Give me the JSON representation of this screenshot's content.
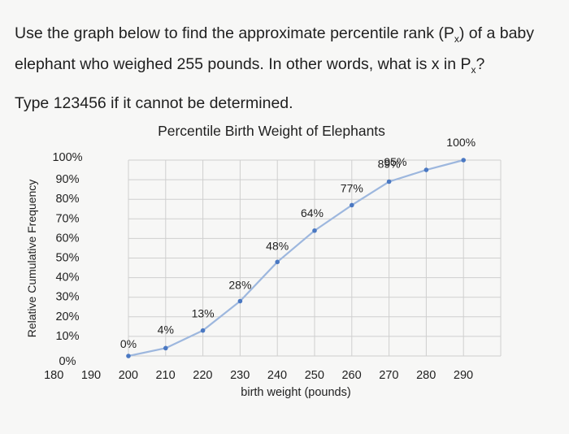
{
  "question": {
    "line1_pre": "Use the graph below to find the approximate percentile rank (P",
    "line1_sub": "x",
    "line1_post": ") of a baby",
    "line2_pre": "elephant who weighed 255 pounds. In other words, what is x in P",
    "line2_sub": "x",
    "line2_post": "?",
    "type_instruction": "Type 123456 if it cannot be determined."
  },
  "chart_data": {
    "type": "line",
    "title": "Percentile Birth Weight of Elephants",
    "xlabel": "birth weight (pounds)",
    "ylabel": "Relative Cumulative Frequency",
    "xlim": [
      180,
      290
    ],
    "ylim": [
      0,
      100
    ],
    "x_ticks": [
      "180",
      "190",
      "200",
      "210",
      "220",
      "230",
      "240",
      "250",
      "260",
      "270",
      "280",
      "290"
    ],
    "y_ticks": [
      "0%",
      "10%",
      "20%",
      "30%",
      "40%",
      "50%",
      "60%",
      "70%",
      "80%",
      "90%",
      "100%"
    ],
    "grid": true,
    "series": [
      {
        "x": [
          190,
          200,
          210,
          220,
          230,
          240,
          250,
          260,
          270,
          280
        ],
        "y": [
          0,
          4,
          13,
          28,
          48,
          64,
          77,
          89,
          95,
          100
        ],
        "labels": [
          "0%",
          "4%",
          "13%",
          "28%",
          "48%",
          "64%",
          "77%",
          "89%",
          "95%",
          "100%"
        ]
      }
    ],
    "colors": {
      "line": "#9db7de",
      "marker": "#4a78c2",
      "grid": "#cfcfcf"
    }
  }
}
